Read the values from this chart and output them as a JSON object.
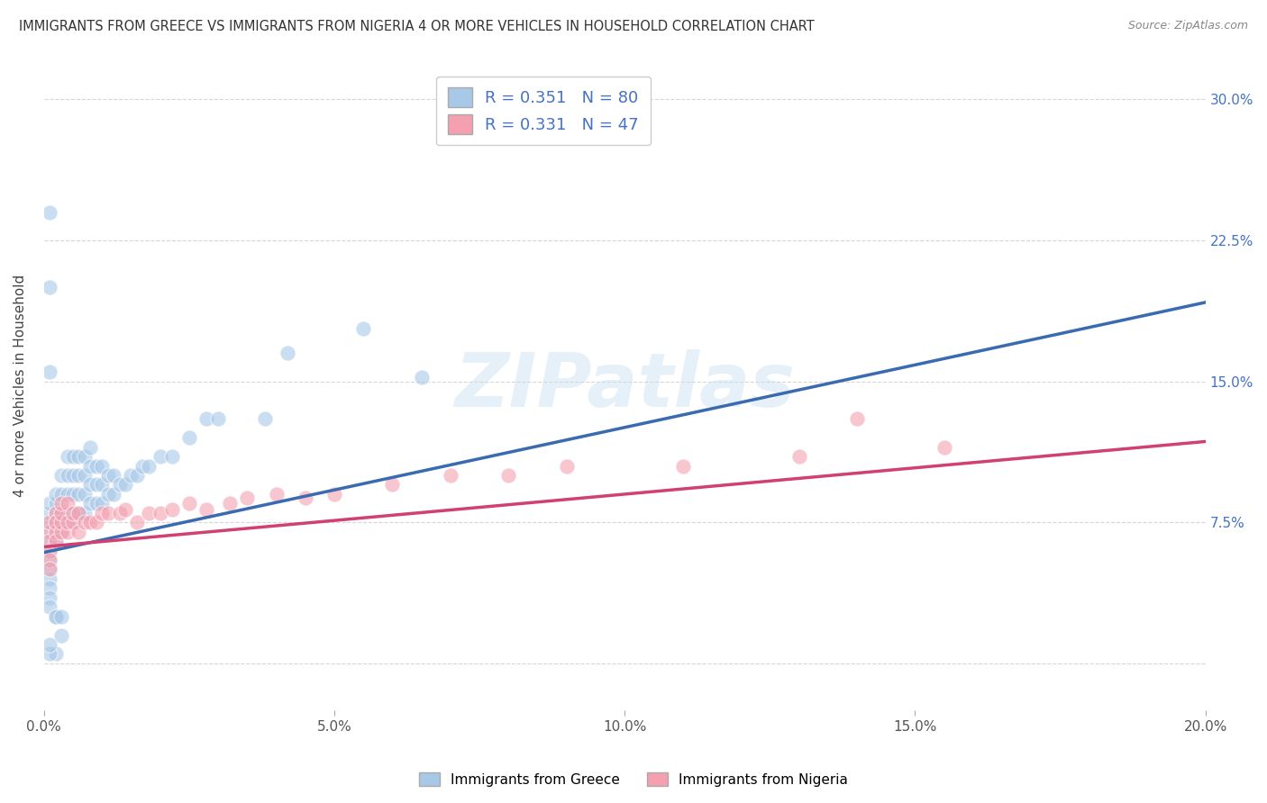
{
  "title": "IMMIGRANTS FROM GREECE VS IMMIGRANTS FROM NIGERIA 4 OR MORE VEHICLES IN HOUSEHOLD CORRELATION CHART",
  "source": "Source: ZipAtlas.com",
  "ylabel": "4 or more Vehicles in Household",
  "greece_R": 0.351,
  "greece_N": 80,
  "nigeria_R": 0.331,
  "nigeria_N": 47,
  "greece_color": "#a8c8e8",
  "nigeria_color": "#f4a0b0",
  "greece_line_color": "#3a6bb0",
  "nigeria_line_color": "#d04070",
  "background_color": "#ffffff",
  "grid_color": "#cccccc",
  "watermark": "ZIPatlas",
  "x_min": 0.0,
  "x_max": 0.2,
  "y_min": -0.025,
  "y_max": 0.32,
  "greece_trend": [
    0.059,
    0.192
  ],
  "nigeria_trend": [
    0.062,
    0.118
  ],
  "greece_x": [
    0.001,
    0.001,
    0.001,
    0.001,
    0.001,
    0.001,
    0.001,
    0.001,
    0.001,
    0.001,
    0.001,
    0.001,
    0.002,
    0.002,
    0.002,
    0.002,
    0.002,
    0.002,
    0.003,
    0.003,
    0.003,
    0.003,
    0.003,
    0.004,
    0.004,
    0.004,
    0.004,
    0.004,
    0.005,
    0.005,
    0.005,
    0.005,
    0.005,
    0.006,
    0.006,
    0.006,
    0.006,
    0.007,
    0.007,
    0.007,
    0.007,
    0.008,
    0.008,
    0.008,
    0.008,
    0.009,
    0.009,
    0.009,
    0.01,
    0.01,
    0.01,
    0.011,
    0.011,
    0.012,
    0.012,
    0.013,
    0.014,
    0.015,
    0.016,
    0.017,
    0.018,
    0.02,
    0.022,
    0.025,
    0.028,
    0.03,
    0.038,
    0.042,
    0.055,
    0.065,
    0.001,
    0.001,
    0.001,
    0.002,
    0.002,
    0.003,
    0.003,
    0.002,
    0.001,
    0.001
  ],
  "greece_y": [
    0.075,
    0.07,
    0.065,
    0.06,
    0.055,
    0.05,
    0.08,
    0.085,
    0.045,
    0.04,
    0.035,
    0.03,
    0.075,
    0.07,
    0.065,
    0.08,
    0.085,
    0.09,
    0.075,
    0.07,
    0.08,
    0.09,
    0.1,
    0.075,
    0.08,
    0.09,
    0.1,
    0.11,
    0.075,
    0.08,
    0.09,
    0.1,
    0.11,
    0.08,
    0.09,
    0.1,
    0.11,
    0.08,
    0.09,
    0.1,
    0.11,
    0.085,
    0.095,
    0.105,
    0.115,
    0.085,
    0.095,
    0.105,
    0.085,
    0.095,
    0.105,
    0.09,
    0.1,
    0.09,
    0.1,
    0.095,
    0.095,
    0.1,
    0.1,
    0.105,
    0.105,
    0.11,
    0.11,
    0.12,
    0.13,
    0.13,
    0.13,
    0.165,
    0.178,
    0.152,
    0.24,
    0.2,
    0.155,
    0.025,
    0.025,
    0.025,
    0.015,
    0.005,
    0.005,
    0.01
  ],
  "nigeria_x": [
    0.001,
    0.001,
    0.001,
    0.001,
    0.001,
    0.001,
    0.002,
    0.002,
    0.002,
    0.002,
    0.003,
    0.003,
    0.003,
    0.003,
    0.004,
    0.004,
    0.004,
    0.005,
    0.005,
    0.006,
    0.006,
    0.007,
    0.008,
    0.009,
    0.01,
    0.011,
    0.013,
    0.014,
    0.016,
    0.018,
    0.02,
    0.022,
    0.025,
    0.028,
    0.032,
    0.035,
    0.04,
    0.045,
    0.05,
    0.06,
    0.07,
    0.08,
    0.09,
    0.11,
    0.13,
    0.14,
    0.155
  ],
  "nigeria_y": [
    0.07,
    0.065,
    0.06,
    0.055,
    0.05,
    0.075,
    0.07,
    0.065,
    0.08,
    0.075,
    0.07,
    0.075,
    0.08,
    0.085,
    0.07,
    0.075,
    0.085,
    0.075,
    0.08,
    0.07,
    0.08,
    0.075,
    0.075,
    0.075,
    0.08,
    0.08,
    0.08,
    0.082,
    0.075,
    0.08,
    0.08,
    0.082,
    0.085,
    0.082,
    0.085,
    0.088,
    0.09,
    0.088,
    0.09,
    0.095,
    0.1,
    0.1,
    0.105,
    0.105,
    0.11,
    0.13,
    0.115
  ]
}
